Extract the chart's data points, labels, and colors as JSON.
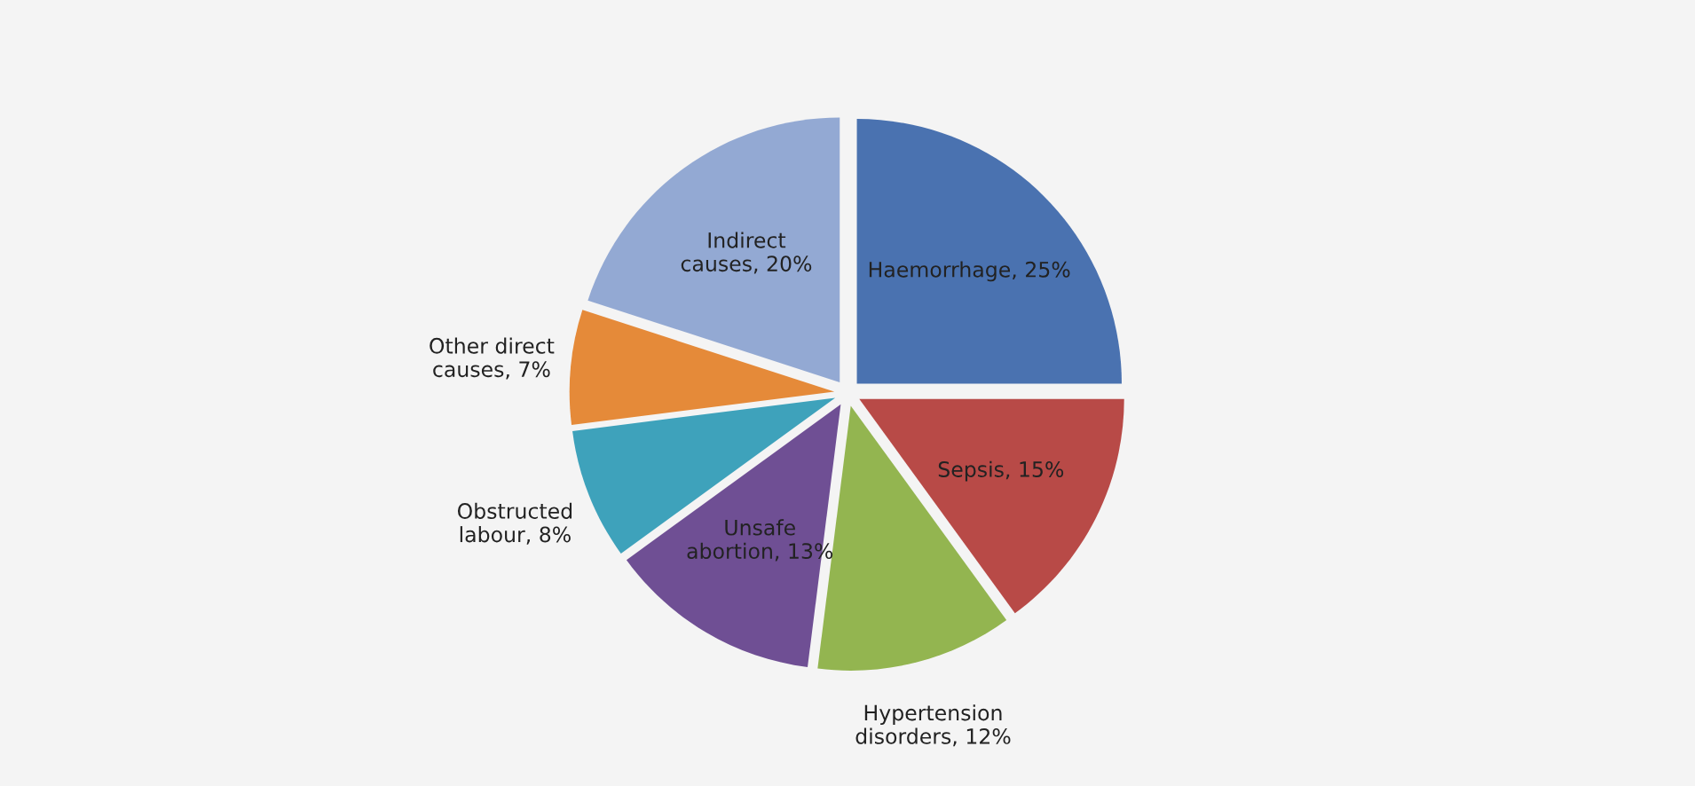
{
  "chart_data": {
    "type": "pie",
    "categories": [
      "Haemorrhage, 25%",
      "Sepsis, 15%",
      "Hypertension\ndisorders, 12%",
      "Unsafe\nabortion, 13%",
      "Obstructed\nlabour, 8%",
      "Other direct\ncauses, 7%",
      "Indirect\ncauses, 20%"
    ],
    "values": [
      25,
      15,
      12,
      13,
      8,
      7,
      20
    ],
    "colors": [
      "#4a72b0",
      "#b84a47",
      "#93b550",
      "#6f4f94",
      "#3ea2bb",
      "#e58a39",
      "#93a9d3"
    ],
    "legend": false
  }
}
